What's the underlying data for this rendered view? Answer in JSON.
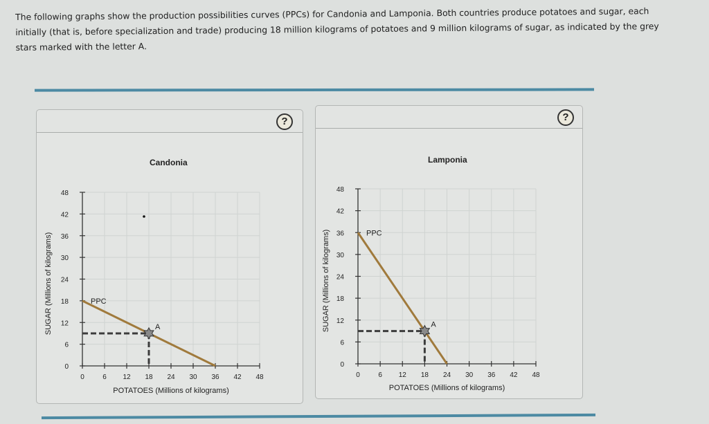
{
  "intro": {
    "text": "The following graphs show the production possibilities curves (PPCs) for Candonia and Lamponia. Both countries produce potatoes and sugar, each initially (that is, before specialization and trade) producing 18 million kilograms of potatoes and 9 million kilograms of sugar, as indicated by the grey stars marked with the letter A."
  },
  "panels": [
    {
      "country": "Candonia",
      "help_label": "?",
      "ppc_label": "PPC",
      "point_label": "A",
      "ylabel": "SUGAR (Millions of kilograms)",
      "xlabel": "POTATOES (Millions of kilograms)"
    },
    {
      "country": "Lamponia",
      "help_label": "?",
      "ppc_label": "PPC",
      "point_label": "A",
      "ylabel": "SUGAR (Millions of kilograms)",
      "xlabel": "POTATOES (Millions of kilograms)"
    }
  ],
  "colors": {
    "ppc_line": "#a07a3c",
    "rule": "#4c8aa3",
    "star": "#8a8a8a",
    "dashed_guides": "#3c3c3c"
  },
  "chart_data": [
    {
      "type": "line",
      "title": "Candonia",
      "xlabel": "POTATOES (Millions of kilograms)",
      "ylabel": "SUGAR (Millions of kilograms)",
      "xlim": [
        0,
        48
      ],
      "ylim": [
        0,
        48
      ],
      "xticks": [
        0,
        6,
        12,
        18,
        24,
        30,
        36,
        42,
        48
      ],
      "yticks": [
        0,
        6,
        12,
        18,
        24,
        30,
        36,
        42,
        48
      ],
      "grid": true,
      "series": [
        {
          "name": "PPC",
          "x": [
            0,
            36
          ],
          "y": [
            18,
            0
          ]
        }
      ],
      "points": [
        {
          "label": "A",
          "x": 18,
          "y": 9,
          "marker": "grey star"
        }
      ]
    },
    {
      "type": "line",
      "title": "Lamponia",
      "xlabel": "POTATOES (Millions of kilograms)",
      "ylabel": "SUGAR (Millions of kilograms)",
      "xlim": [
        0,
        48
      ],
      "ylim": [
        0,
        48
      ],
      "xticks": [
        0,
        6,
        12,
        18,
        24,
        30,
        36,
        42,
        48
      ],
      "yticks": [
        0,
        6,
        12,
        18,
        24,
        30,
        36,
        42,
        48
      ],
      "grid": true,
      "series": [
        {
          "name": "PPC",
          "x": [
            0,
            24
          ],
          "y": [
            36,
            0
          ]
        }
      ],
      "points": [
        {
          "label": "A",
          "x": 18,
          "y": 9,
          "marker": "grey star"
        }
      ]
    }
  ]
}
